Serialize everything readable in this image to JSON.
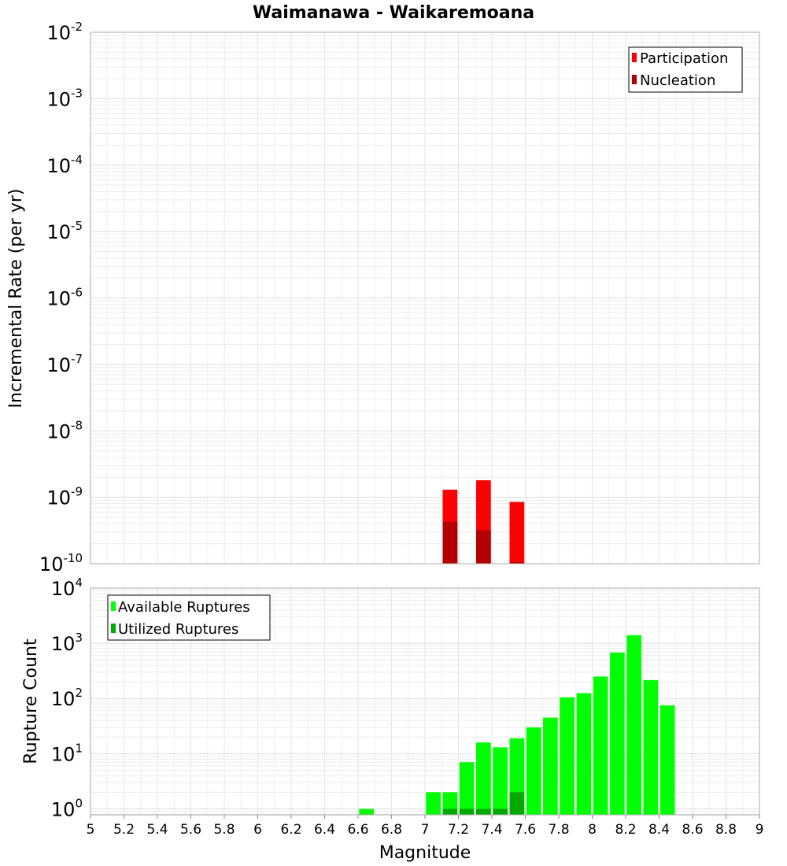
{
  "chart_data": [
    {
      "type": "bar",
      "title": "Waimanawa - Waikaremoana",
      "xlabel": "Magnitude",
      "ylabel": "Incremental Rate (per yr)",
      "xlim": [
        5,
        9
      ],
      "ylim": [
        1e-10,
        0.01
      ],
      "yscale": "log",
      "grid": true,
      "legend_position": "top-right",
      "bin_width": 0.1,
      "series": [
        {
          "name": "Participation",
          "color": "#ff0000",
          "x": [
            7.15,
            7.35,
            7.55
          ],
          "values": [
            1.3e-09,
            1.8e-09,
            8.5e-10
          ]
        },
        {
          "name": "Nucleation",
          "color": "#b30000",
          "x": [
            7.15,
            7.35,
            7.55
          ],
          "values": [
            4.3e-10,
            3.2e-10,
            1.05e-10
          ]
        }
      ]
    },
    {
      "type": "bar",
      "xlabel": "Magnitude",
      "ylabel": "Rupture Count",
      "xlim": [
        5,
        9
      ],
      "ylim": [
        0.78,
        10000
      ],
      "yscale": "log",
      "grid": true,
      "legend_position": "top-left",
      "bin_width": 0.1,
      "series": [
        {
          "name": "Available Ruptures",
          "color": "#00ff00",
          "x": [
            6.65,
            7.05,
            7.15,
            7.25,
            7.35,
            7.45,
            7.55,
            7.65,
            7.75,
            7.85,
            7.95,
            8.05,
            8.15,
            8.25,
            8.35,
            8.45
          ],
          "values": [
            1,
            2,
            2,
            7,
            16,
            13,
            19,
            30,
            45,
            105,
            125,
            250,
            680,
            1400,
            215,
            75
          ]
        },
        {
          "name": "Utilized Ruptures",
          "color": "#00aa00",
          "x": [
            7.15,
            7.25,
            7.35,
            7.45,
            7.55
          ],
          "values": [
            1,
            1,
            1,
            1,
            2
          ]
        }
      ]
    }
  ],
  "x_ticks": [
    "5",
    "5.2",
    "5.4",
    "5.6",
    "5.8",
    "6",
    "6.2",
    "6.4",
    "6.6",
    "6.8",
    "7",
    "7.2",
    "7.4",
    "7.6",
    "7.8",
    "8",
    "8.2",
    "8.4",
    "8.6",
    "8.8",
    "9"
  ],
  "top_y_ticks": [
    {
      "base": "10",
      "exp": "-2"
    },
    {
      "base": "10",
      "exp": "-3"
    },
    {
      "base": "10",
      "exp": "-4"
    },
    {
      "base": "10",
      "exp": "-5"
    },
    {
      "base": "10",
      "exp": "-6"
    },
    {
      "base": "10",
      "exp": "-7"
    },
    {
      "base": "10",
      "exp": "-8"
    },
    {
      "base": "10",
      "exp": "-9"
    },
    {
      "base": "10",
      "exp": "-10"
    }
  ],
  "bottom_y_ticks": [
    {
      "base": "10",
      "exp": "4"
    },
    {
      "base": "10",
      "exp": "3"
    },
    {
      "base": "10",
      "exp": "2"
    },
    {
      "base": "10",
      "exp": "1"
    },
    {
      "base": "10",
      "exp": "0"
    }
  ]
}
